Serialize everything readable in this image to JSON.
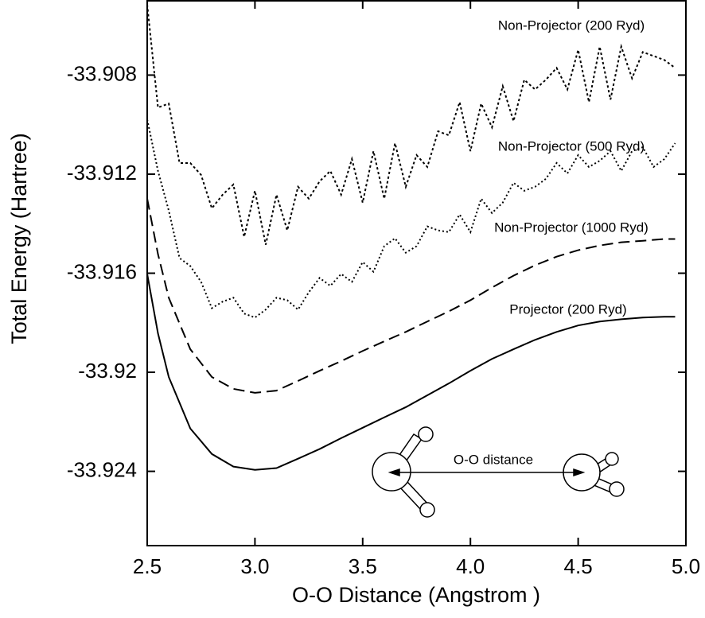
{
  "chart_data": {
    "type": "line",
    "xlabel": "O-O Distance (Angstrom )",
    "ylabel": "Total Energy (Hartree)",
    "annotation": "O-O distance",
    "xlim": [
      2.5,
      5.0
    ],
    "xticks": [
      {
        "value": 2.5,
        "label": "2.5"
      },
      {
        "value": 3.0,
        "label": "3.0"
      },
      {
        "value": 3.5,
        "label": "3.5"
      },
      {
        "value": 4.0,
        "label": "4.0"
      },
      {
        "value": 4.5,
        "label": "4.5"
      },
      {
        "value": 5.0,
        "label": "5.0"
      }
    ],
    "ylim": [
      -33.927,
      -33.905
    ],
    "yticks": [
      -33.908,
      -33.912,
      -33.916,
      -33.92,
      -33.924
    ],
    "series": [
      {
        "name": "Non-Projector (200 Ryd)",
        "color": "#000000",
        "dash": "3 3",
        "x": [
          2.5,
          2.55,
          2.6,
          2.65,
          2.7,
          2.75,
          2.8,
          2.85,
          2.9,
          2.95,
          3.0,
          3.05,
          3.1,
          3.15,
          3.2,
          3.25,
          3.3,
          3.35,
          3.4,
          3.45,
          3.5,
          3.55,
          3.6,
          3.65,
          3.7,
          3.75,
          3.8,
          3.85,
          3.9,
          3.95,
          4.0,
          4.05,
          4.1,
          4.15,
          4.2,
          4.25,
          4.3,
          4.35,
          4.4,
          4.45,
          4.5,
          4.55,
          4.6,
          4.65,
          4.7,
          4.75,
          4.8,
          4.85,
          4.9,
          4.95
        ],
        "values": [
          -33.90515,
          -33.90931,
          -33.90915,
          -33.91155,
          -33.91155,
          -33.91203,
          -33.91338,
          -33.91283,
          -33.91242,
          -33.91453,
          -33.91267,
          -33.91485,
          -33.91283,
          -33.91427,
          -33.91251,
          -33.91299,
          -33.91229,
          -33.91187,
          -33.91283,
          -33.91139,
          -33.91315,
          -33.91107,
          -33.91299,
          -33.91075,
          -33.91251,
          -33.91123,
          -33.91171,
          -33.91027,
          -33.91043,
          -33.90909,
          -33.91107,
          -33.90915,
          -33.91011,
          -33.90845,
          -33.90986,
          -33.90819,
          -33.90858,
          -33.90819,
          -33.90771,
          -33.90858,
          -33.90698,
          -33.90909,
          -33.90685,
          -33.90899,
          -33.90685,
          -33.90813,
          -33.90707,
          -33.90723,
          -33.90739,
          -33.90771
        ]
      },
      {
        "name": "Non-Projector (500 Ryd)",
        "color": "#000000",
        "dash": "2 3",
        "x": [
          2.5,
          2.55,
          2.6,
          2.65,
          2.7,
          2.75,
          2.8,
          2.85,
          2.9,
          2.95,
          3.0,
          3.05,
          3.1,
          3.15,
          3.2,
          3.25,
          3.3,
          3.35,
          3.4,
          3.45,
          3.5,
          3.55,
          3.6,
          3.65,
          3.7,
          3.75,
          3.8,
          3.85,
          3.9,
          3.95,
          4.0,
          4.05,
          4.1,
          4.15,
          4.2,
          4.25,
          4.3,
          4.35,
          4.4,
          4.45,
          4.5,
          4.55,
          4.6,
          4.65,
          4.7,
          4.75,
          4.8,
          4.85,
          4.9,
          4.95
        ],
        "values": [
          -33.90979,
          -33.91187,
          -33.91347,
          -33.91539,
          -33.91571,
          -33.91635,
          -33.91741,
          -33.91715,
          -33.91699,
          -33.91763,
          -33.91779,
          -33.91747,
          -33.91699,
          -33.91709,
          -33.91747,
          -33.91677,
          -33.91619,
          -33.91651,
          -33.91603,
          -33.91635,
          -33.91555,
          -33.91594,
          -33.91491,
          -33.91459,
          -33.91517,
          -33.91491,
          -33.91411,
          -33.91427,
          -33.91434,
          -33.91363,
          -33.91434,
          -33.91299,
          -33.91357,
          -33.91315,
          -33.91235,
          -33.91267,
          -33.91251,
          -33.91219,
          -33.91155,
          -33.91197,
          -33.91123,
          -33.91171,
          -33.91146,
          -33.91107,
          -33.91187,
          -33.91107,
          -33.91091,
          -33.91171,
          -33.91139,
          -33.91075
        ]
      },
      {
        "name": "Non-Projector (1000 Ryd)",
        "color": "#000000",
        "dash": "14 7",
        "x": [
          2.5,
          2.55,
          2.6,
          2.7,
          2.8,
          2.9,
          3.0,
          3.1,
          3.2,
          3.3,
          3.4,
          3.5,
          3.6,
          3.7,
          3.8,
          3.9,
          4.0,
          4.1,
          4.2,
          4.3,
          4.4,
          4.5,
          4.6,
          4.7,
          4.8,
          4.9,
          4.95
        ],
        "values": [
          -33.91299,
          -33.91523,
          -33.91699,
          -33.91907,
          -33.92019,
          -33.92067,
          -33.92083,
          -33.92074,
          -33.92035,
          -33.91994,
          -33.91955,
          -33.91914,
          -33.91875,
          -33.91837,
          -33.91795,
          -33.91754,
          -33.91709,
          -33.91658,
          -33.9161,
          -33.91568,
          -33.91533,
          -33.91507,
          -33.91488,
          -33.91475,
          -33.91469,
          -33.91462,
          -33.91462
        ]
      },
      {
        "name": "Projector (200 Ryd)",
        "color": "#000000",
        "dash": "none",
        "x": [
          2.5,
          2.55,
          2.6,
          2.7,
          2.8,
          2.9,
          3.0,
          3.1,
          3.2,
          3.3,
          3.4,
          3.5,
          3.6,
          3.7,
          3.8,
          3.9,
          4.0,
          4.1,
          4.2,
          4.3,
          4.4,
          4.5,
          4.6,
          4.7,
          4.8,
          4.9,
          4.95
        ],
        "values": [
          -33.91603,
          -33.91843,
          -33.92019,
          -33.92227,
          -33.9233,
          -33.92381,
          -33.92394,
          -33.92387,
          -33.92349,
          -33.9231,
          -33.92266,
          -33.92224,
          -33.92182,
          -33.92141,
          -33.92093,
          -33.92045,
          -33.91994,
          -33.91946,
          -33.91907,
          -33.91869,
          -33.91837,
          -33.91811,
          -33.91795,
          -33.91786,
          -33.91779,
          -33.91776,
          -33.91776
        ]
      }
    ]
  }
}
